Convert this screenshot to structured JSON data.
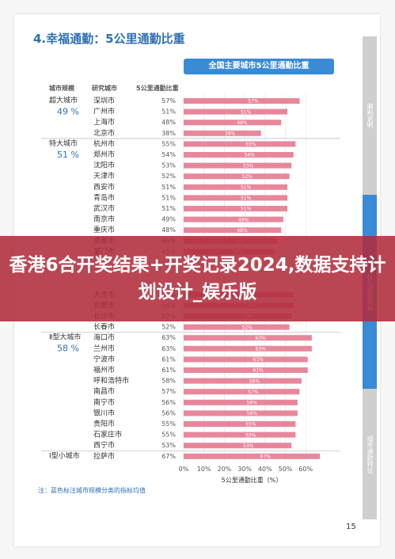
{
  "page": {
    "section_title": "4.幸福通勤：5公里通勤比重",
    "page_number": "15",
    "note": "注：蓝色标注城市规模分类的指标均值",
    "sidebar": [
      "编制说明",
      "核心通勤指标",
      "城市通勤特征"
    ]
  },
  "overlay": {
    "title": "香港6合开奖结果+开奖记录2024,数据支持计划设计_娱乐版"
  },
  "chart_data": {
    "type": "bar",
    "orientation": "horizontal",
    "title": "全国主要城市5公里通勤比重",
    "column_headers": [
      "城市规模",
      "研究城市",
      "5公里通勤比重"
    ],
    "xlabel": "5公里通勤比重（%）",
    "xlim": [
      0,
      70
    ],
    "x_ticks": [
      "0%",
      "10%",
      "20%",
      "30%",
      "40%",
      "50%",
      "60%"
    ],
    "bar_color": "#e8879c",
    "tiers": [
      {
        "name": "超大城市",
        "avg": "49 %"
      },
      {
        "name": "特大城市",
        "avg": "51 %"
      },
      {
        "name": "Ⅱ型大城市",
        "avg": "58 %"
      },
      {
        "name": "Ⅰ型小城市",
        "avg": ""
      }
    ],
    "categories": [
      "深圳市",
      "广州市",
      "上海市",
      "北京市",
      "杭州市",
      "郑州市",
      "沈阳市",
      "天津市",
      "西安市",
      "青岛市",
      "武汉市",
      "南京市",
      "重庆市",
      "成都市",
      "厦门市",
      "",
      "",
      "",
      "大连市",
      "合肥市",
      "长沙市",
      "长春市",
      "海口市",
      "兰州市",
      "宁波市",
      "福州市",
      "呼和浩特市",
      "南昌市",
      "南宁市",
      "银川市",
      "贵阳市",
      "石家庄市",
      "西宁市",
      "拉萨市"
    ],
    "values": [
      57,
      51,
      48,
      38,
      55,
      54,
      53,
      52,
      51,
      51,
      51,
      49,
      48,
      46,
      45,
      null,
      null,
      null,
      54,
      54,
      53,
      52,
      63,
      63,
      61,
      61,
      58,
      57,
      56,
      56,
      55,
      55,
      53,
      67
    ]
  }
}
